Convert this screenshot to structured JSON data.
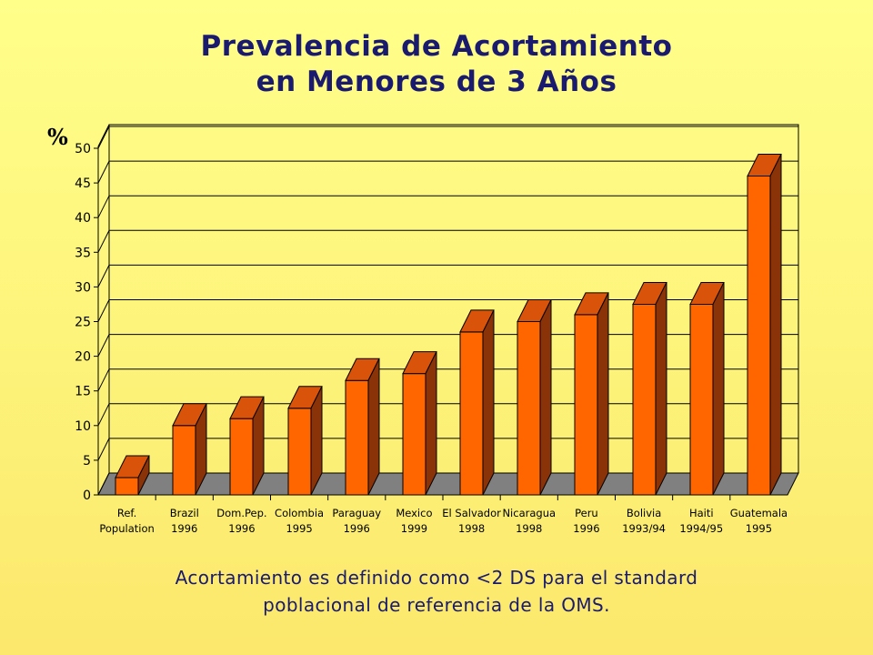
{
  "title": {
    "line1": "Prevalencia de Acortamiento",
    "line2": "en Menores de 3 Años"
  },
  "footnote": {
    "line1": "Acortamiento es definido como <2 DS para el standard",
    "line2": "poblacional de referencia de la OMS."
  },
  "colors": {
    "bar_front": "#ff6600",
    "bar_top": "#d9540a",
    "bar_side": "#8a3208",
    "floor": "#808080",
    "grid": "#000000",
    "title_text": "#1a1a6e"
  },
  "chart_data": {
    "type": "bar",
    "ylabel": "%",
    "ylim": [
      0,
      50
    ],
    "yticks": [
      0,
      5,
      10,
      15,
      20,
      25,
      30,
      35,
      40,
      45,
      50
    ],
    "grid": true,
    "categories": [
      [
        "Ref.",
        "Population"
      ],
      [
        "Brazil",
        "1996"
      ],
      [
        "Dom.Pep.",
        "1996"
      ],
      [
        "Colombia",
        "1995"
      ],
      [
        "Paraguay",
        "1996"
      ],
      [
        "Mexico",
        "1999"
      ],
      [
        "El Salvador",
        "1998"
      ],
      [
        "Nicaragua",
        "1998"
      ],
      [
        "Peru",
        "1996"
      ],
      [
        "Bolivia",
        "1993/94"
      ],
      [
        "Haiti",
        "1994/95"
      ],
      [
        "Guatemala",
        "1995"
      ]
    ],
    "values": [
      2.5,
      10,
      11,
      12.5,
      16.5,
      17.5,
      23.5,
      25,
      26,
      27.5,
      27.5,
      46
    ]
  }
}
